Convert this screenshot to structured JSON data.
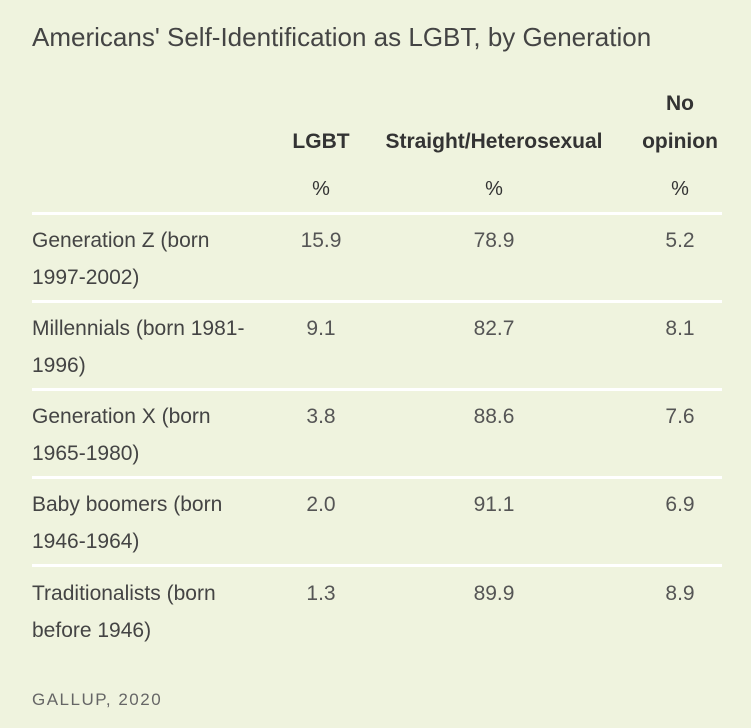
{
  "chart_data": {
    "type": "table",
    "title": "Americans' Self-Identification as LGBT, by Generation",
    "columns": [
      {
        "key": "lgbt",
        "label": "LGBT",
        "unit": "%"
      },
      {
        "key": "straight",
        "label": "Straight/Heterosexual",
        "unit": "%"
      },
      {
        "key": "no_opinion",
        "label_line1": "No",
        "label_line2": "opinion",
        "unit": "%"
      }
    ],
    "rows": [
      {
        "label_line1": "Generation Z (born",
        "label_line2": "1997-2002)",
        "values": [
          "15.9",
          "78.9",
          "5.2"
        ]
      },
      {
        "label_line1": "Millennials (born 1981-",
        "label_line2": "1996)",
        "values": [
          "9.1",
          "82.7",
          "8.1"
        ]
      },
      {
        "label_line1": "Generation X (born",
        "label_line2": "1965-1980)",
        "values": [
          "3.8",
          "88.6",
          "7.6"
        ]
      },
      {
        "label_line1": "Baby boomers (born",
        "label_line2": "1946-1964)",
        "values": [
          "2.0",
          "91.1",
          "6.9"
        ]
      },
      {
        "label_line1": "Traditionalists (born",
        "label_line2": "before 1946)",
        "values": [
          "1.3",
          "89.9",
          "8.9"
        ]
      }
    ],
    "source": "GALLUP, 2020"
  },
  "colors": {
    "background": "#eff3de",
    "separator": "#ffffff",
    "text": "#333333"
  }
}
